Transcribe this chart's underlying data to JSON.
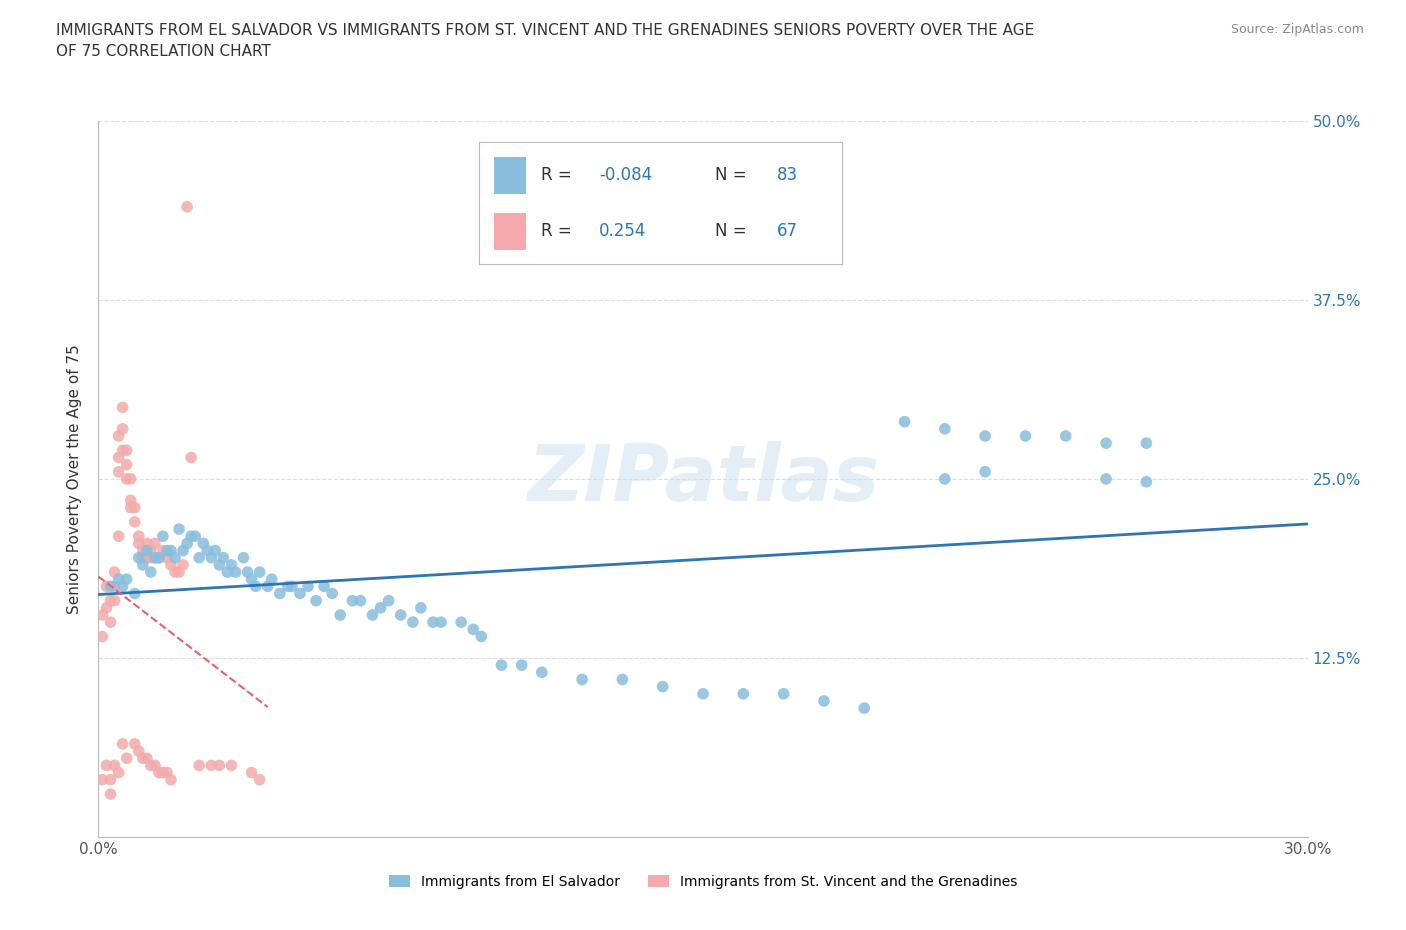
{
  "title": "IMMIGRANTS FROM EL SALVADOR VS IMMIGRANTS FROM ST. VINCENT AND THE GRENADINES SENIORS POVERTY OVER THE AGE\nOF 75 CORRELATION CHART",
  "source": "Source: ZipAtlas.com",
  "ylabel": "Seniors Poverty Over the Age of 75",
  "xlim": [
    0.0,
    0.3
  ],
  "ylim": [
    0.0,
    0.5
  ],
  "yticks": [
    0.0,
    0.125,
    0.25,
    0.375,
    0.5
  ],
  "yticklabels_right": [
    "",
    "12.5%",
    "25.0%",
    "37.5%",
    "50.0%"
  ],
  "legend1_R": "-0.084",
  "legend1_N": "83",
  "legend2_R": "0.254",
  "legend2_N": "67",
  "blue_color": "#87BEDD",
  "pink_color": "#F4AAAA",
  "blue_line_color": "#2E75B6",
  "pink_line_color": "#E8606A",
  "blue_scatter_x": [
    0.003,
    0.005,
    0.006,
    0.007,
    0.009,
    0.01,
    0.011,
    0.012,
    0.013,
    0.014,
    0.015,
    0.016,
    0.017,
    0.018,
    0.019,
    0.02,
    0.021,
    0.022,
    0.023,
    0.024,
    0.025,
    0.026,
    0.027,
    0.028,
    0.029,
    0.03,
    0.031,
    0.032,
    0.033,
    0.034,
    0.036,
    0.037,
    0.038,
    0.039,
    0.04,
    0.042,
    0.043,
    0.045,
    0.047,
    0.048,
    0.05,
    0.052,
    0.054,
    0.056,
    0.058,
    0.06,
    0.063,
    0.065,
    0.068,
    0.07,
    0.072,
    0.075,
    0.078,
    0.08,
    0.083,
    0.085,
    0.09,
    0.093,
    0.095,
    0.1,
    0.105,
    0.11,
    0.12,
    0.13,
    0.14,
    0.15,
    0.16,
    0.17,
    0.18,
    0.19,
    0.2,
    0.21,
    0.22,
    0.23,
    0.24,
    0.25,
    0.26,
    0.21,
    0.22,
    0.25,
    0.26
  ],
  "blue_scatter_y": [
    0.175,
    0.18,
    0.175,
    0.18,
    0.17,
    0.195,
    0.19,
    0.2,
    0.185,
    0.195,
    0.195,
    0.21,
    0.2,
    0.2,
    0.195,
    0.215,
    0.2,
    0.205,
    0.21,
    0.21,
    0.195,
    0.205,
    0.2,
    0.195,
    0.2,
    0.19,
    0.195,
    0.185,
    0.19,
    0.185,
    0.195,
    0.185,
    0.18,
    0.175,
    0.185,
    0.175,
    0.18,
    0.17,
    0.175,
    0.175,
    0.17,
    0.175,
    0.165,
    0.175,
    0.17,
    0.155,
    0.165,
    0.165,
    0.155,
    0.16,
    0.165,
    0.155,
    0.15,
    0.16,
    0.15,
    0.15,
    0.15,
    0.145,
    0.14,
    0.12,
    0.12,
    0.115,
    0.11,
    0.11,
    0.105,
    0.1,
    0.1,
    0.1,
    0.095,
    0.09,
    0.29,
    0.285,
    0.28,
    0.28,
    0.28,
    0.275,
    0.275,
    0.25,
    0.255,
    0.25,
    0.248
  ],
  "pink_scatter_x": [
    0.001,
    0.001,
    0.001,
    0.002,
    0.002,
    0.002,
    0.003,
    0.003,
    0.003,
    0.003,
    0.004,
    0.004,
    0.004,
    0.004,
    0.005,
    0.005,
    0.005,
    0.005,
    0.005,
    0.006,
    0.006,
    0.006,
    0.006,
    0.007,
    0.007,
    0.007,
    0.007,
    0.008,
    0.008,
    0.008,
    0.009,
    0.009,
    0.009,
    0.01,
    0.01,
    0.01,
    0.011,
    0.011,
    0.011,
    0.012,
    0.012,
    0.012,
    0.013,
    0.013,
    0.013,
    0.014,
    0.014,
    0.014,
    0.015,
    0.015,
    0.016,
    0.016,
    0.017,
    0.017,
    0.018,
    0.018,
    0.019,
    0.02,
    0.021,
    0.022,
    0.023,
    0.025,
    0.028,
    0.03,
    0.033,
    0.038,
    0.04
  ],
  "pink_scatter_y": [
    0.155,
    0.14,
    0.04,
    0.175,
    0.16,
    0.05,
    0.165,
    0.15,
    0.04,
    0.03,
    0.185,
    0.175,
    0.165,
    0.05,
    0.28,
    0.265,
    0.255,
    0.21,
    0.045,
    0.3,
    0.285,
    0.27,
    0.065,
    0.27,
    0.26,
    0.25,
    0.055,
    0.25,
    0.235,
    0.23,
    0.23,
    0.22,
    0.065,
    0.21,
    0.205,
    0.06,
    0.2,
    0.195,
    0.055,
    0.205,
    0.195,
    0.055,
    0.2,
    0.195,
    0.05,
    0.205,
    0.195,
    0.05,
    0.195,
    0.045,
    0.2,
    0.045,
    0.195,
    0.045,
    0.19,
    0.04,
    0.185,
    0.185,
    0.19,
    0.44,
    0.265,
    0.05,
    0.05,
    0.05,
    0.05,
    0.045,
    0.04
  ],
  "watermark": "ZIPatlas",
  "background_color": "#ffffff",
  "grid_color": "#dddddd"
}
